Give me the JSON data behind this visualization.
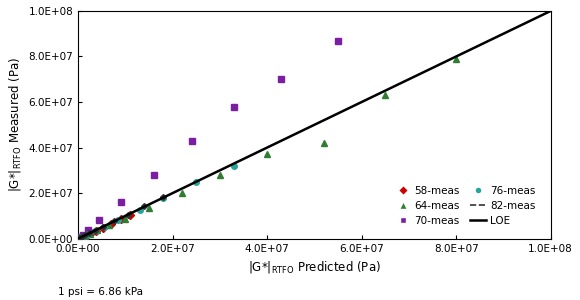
{
  "footnote": "1 psi = 6.86 kPa",
  "xlim": [
    0,
    100000000.0
  ],
  "ylim": [
    0,
    100000000.0
  ],
  "xticks": [
    0,
    20000000.0,
    40000000.0,
    60000000.0,
    80000000.0,
    100000000.0
  ],
  "yticks": [
    0,
    20000000.0,
    40000000.0,
    60000000.0,
    80000000.0,
    100000000.0
  ],
  "series": {
    "58-meas": {
      "color": "#cc0000",
      "marker": "D",
      "markersize": 4,
      "x": [
        150000,
        250000,
        400000,
        600000,
        900000,
        1300000,
        1900000,
        2700000,
        3800000,
        5200000,
        7000000,
        9000000,
        11000000
      ],
      "y": [
        130000,
        220000,
        360000,
        550000,
        820000,
        1200000,
        1700000,
        2500000,
        3500000,
        4800000,
        6500000,
        8500000,
        10500000
      ]
    },
    "64-meas": {
      "color": "#2e7d32",
      "marker": "^",
      "markersize": 5,
      "x": [
        150000,
        300000,
        550000,
        900000,
        1500000,
        2500000,
        4000000,
        6500000,
        10000000,
        15000000,
        22000000,
        30000000,
        40000000,
        52000000,
        65000000,
        80000000
      ],
      "y": [
        130000,
        270000,
        480000,
        790000,
        1300000,
        2200000,
        3600000,
        6000000,
        8800000,
        13500000,
        20000000,
        28000000,
        37000000,
        42000000,
        63000000,
        79000000
      ]
    },
    "70-meas": {
      "color": "#7b1fa2",
      "marker": "s",
      "markersize": 5,
      "x": [
        200000,
        500000,
        1000000,
        2000000,
        4500000,
        9000000,
        16000000,
        24000000,
        33000000,
        43000000,
        55000000
      ],
      "y": [
        300000,
        800000,
        1800000,
        3800000,
        8000000,
        16000000,
        28000000,
        43000000,
        58000000,
        70000000,
        87000000
      ]
    },
    "76-meas": {
      "color": "#26a69a",
      "marker": "o",
      "markersize": 4,
      "x": [
        100000,
        200000,
        400000,
        700000,
        1200000,
        2000000,
        3500000,
        5500000,
        8500000,
        13000000,
        18000000,
        25000000,
        33000000
      ],
      "y": [
        90000,
        180000,
        360000,
        640000,
        1100000,
        1900000,
        3200000,
        5200000,
        8000000,
        12500000,
        18000000,
        25000000,
        32000000
      ]
    },
    "82-meas": {
      "color": "#333333",
      "marker": "D",
      "markersize": 3,
      "x": [
        50000,
        100000,
        200000,
        350000,
        600000,
        950000,
        1500000,
        2300000,
        3500000,
        5200000,
        7500000,
        10500000,
        14000000,
        18000000
      ],
      "y": [
        55000,
        110000,
        210000,
        370000,
        620000,
        980000,
        1550000,
        2350000,
        3550000,
        5250000,
        7600000,
        10600000,
        14200000,
        18200000
      ]
    }
  }
}
